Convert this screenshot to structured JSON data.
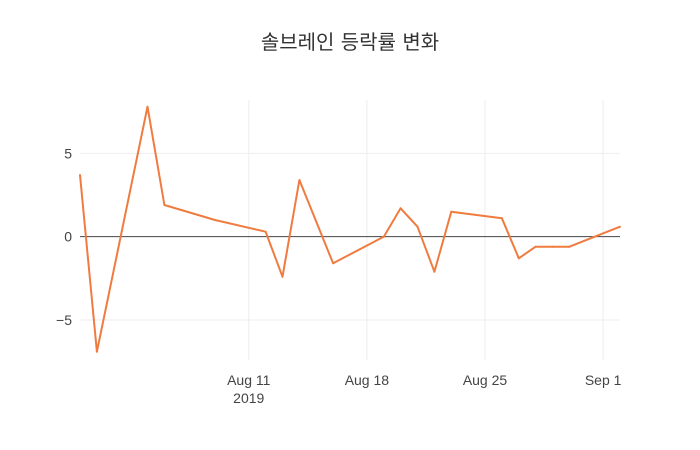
{
  "chart_data": {
    "type": "line",
    "title": "솔브레인 등락률 변화",
    "xlabel": "",
    "ylabel": "",
    "x_range": [
      "2019-08-01",
      "2019-09-02"
    ],
    "ylim": [
      -7.4,
      8.2
    ],
    "x_ticks": [
      {
        "date": "2019-08-11",
        "label": "Aug 11",
        "sublabel": "2019"
      },
      {
        "date": "2019-08-18",
        "label": "Aug 18",
        "sublabel": ""
      },
      {
        "date": "2019-08-25",
        "label": "Aug 25",
        "sublabel": ""
      },
      {
        "date": "2019-09-01",
        "label": "Sep 1",
        "sublabel": ""
      }
    ],
    "y_ticks": [
      {
        "value": 5,
        "label": "5"
      },
      {
        "value": 0,
        "label": "0"
      },
      {
        "value": -5,
        "label": "−5"
      }
    ],
    "grid": true,
    "zero_line": true,
    "color": "#F07B3F",
    "series": [
      {
        "x": [
          "2019-08-01",
          "2019-08-02",
          "2019-08-05",
          "2019-08-06",
          "2019-08-07",
          "2019-08-08",
          "2019-08-09",
          "2019-08-12",
          "2019-08-13",
          "2019-08-14",
          "2019-08-16",
          "2019-08-19",
          "2019-08-20",
          "2019-08-21",
          "2019-08-22",
          "2019-08-23",
          "2019-08-26",
          "2019-08-27",
          "2019-08-28",
          "2019-08-29",
          "2019-08-30",
          "2019-09-02"
        ],
        "y": [
          3.7,
          -6.9,
          7.8,
          1.9,
          1.6,
          1.3,
          1.0,
          0.3,
          -2.4,
          3.4,
          -1.6,
          0.0,
          1.7,
          0.6,
          -2.1,
          1.5,
          1.1,
          -1.3,
          -0.6,
          -0.6,
          -0.6,
          0.6
        ]
      }
    ]
  }
}
